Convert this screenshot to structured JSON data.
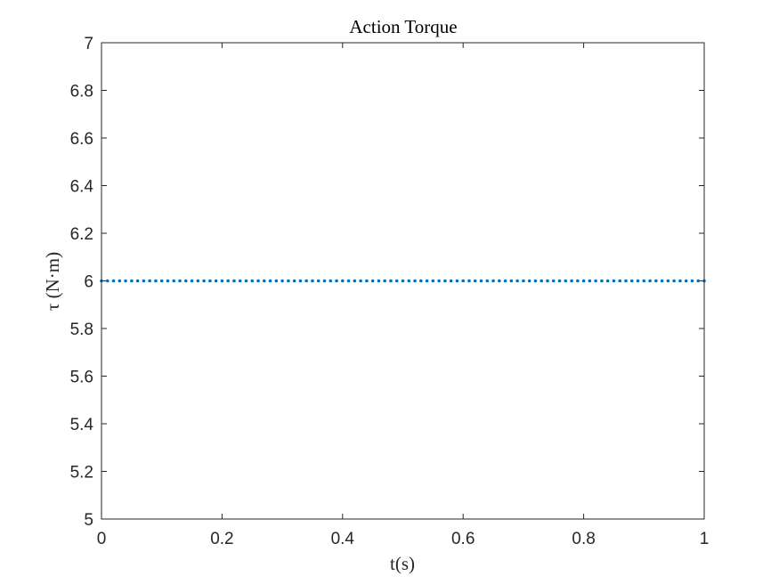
{
  "chart_data": {
    "type": "scatter",
    "title": "Action Torque",
    "xlabel": "t(s)",
    "ylabel": "τ (N·m)",
    "xlim": [
      0,
      1
    ],
    "ylim": [
      5,
      7
    ],
    "xticks": [
      "0",
      "0.2",
      "0.4",
      "0.6",
      "0.8",
      "1"
    ],
    "yticks": [
      "5",
      "5.2",
      "5.4",
      "5.6",
      "5.8",
      "6",
      "6.2",
      "6.4",
      "6.6",
      "6.8",
      "7"
    ],
    "grid": false,
    "marker_color": "#0072BD",
    "series": [
      {
        "x_start": 0,
        "x_end": 1,
        "x_step": 0.01,
        "y": 6
      }
    ]
  }
}
